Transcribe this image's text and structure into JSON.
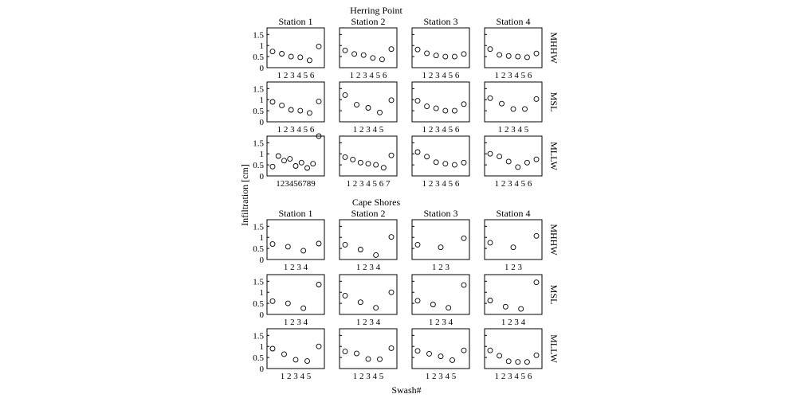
{
  "figure": {
    "ylabel": "Infiltration [cm]",
    "xlabel": "Swash#",
    "y_ticks": [
      "1.5",
      "1",
      "0.5",
      "0"
    ]
  },
  "chart_data": [
    {
      "type": "scatter",
      "title": "Herring Point",
      "columns": [
        "Station 1",
        "Station 2",
        "Station 3",
        "Station 4"
      ],
      "rows": [
        "MHHW",
        "MSL",
        "MLLW"
      ],
      "ylim": [
        0,
        1.8
      ],
      "grid": false,
      "panels": [
        [
          {
            "x": [
              1,
              2,
              3,
              4,
              5,
              6
            ],
            "y": [
              0.73,
              0.63,
              0.5,
              0.47,
              0.33,
              0.96
            ]
          },
          {
            "x": [
              1,
              2,
              3,
              4,
              5,
              6
            ],
            "y": [
              0.78,
              0.62,
              0.57,
              0.44,
              0.37,
              0.84
            ]
          },
          {
            "x": [
              1,
              2,
              3,
              4,
              5,
              6
            ],
            "y": [
              0.82,
              0.65,
              0.55,
              0.5,
              0.5,
              0.62
            ]
          },
          {
            "x": [
              1,
              2,
              3,
              4,
              5,
              6
            ],
            "y": [
              0.84,
              0.58,
              0.53,
              0.5,
              0.47,
              0.64
            ]
          }
        ],
        [
          {
            "x": [
              1,
              2,
              3,
              4,
              5,
              6
            ],
            "y": [
              0.9,
              0.74,
              0.54,
              0.5,
              0.4,
              0.92
            ]
          },
          {
            "x": [
              1,
              2,
              3,
              4,
              5
            ],
            "y": [
              1.21,
              0.77,
              0.63,
              0.42,
              0.98
            ]
          },
          {
            "x": [
              1,
              2,
              3,
              4,
              5,
              6
            ],
            "y": [
              0.95,
              0.7,
              0.61,
              0.5,
              0.5,
              0.8
            ]
          },
          {
            "x": [
              1,
              2,
              3,
              4,
              5
            ],
            "y": [
              1.07,
              0.82,
              0.58,
              0.58,
              1.03
            ]
          }
        ],
        [
          {
            "x": [
              1,
              2,
              3,
              4,
              5,
              6,
              7,
              8,
              9
            ],
            "y": [
              0.42,
              0.9,
              0.69,
              0.77,
              0.45,
              0.6,
              0.36,
              0.55,
              1.8
            ]
          },
          {
            "x": [
              1,
              2,
              3,
              4,
              5,
              6,
              7
            ],
            "y": [
              0.85,
              0.74,
              0.6,
              0.55,
              0.5,
              0.37,
              0.93
            ]
          },
          {
            "x": [
              1,
              2,
              3,
              4,
              5,
              6
            ],
            "y": [
              1.08,
              0.87,
              0.62,
              0.55,
              0.5,
              0.6
            ]
          },
          {
            "x": [
              1,
              2,
              3,
              4,
              5,
              6
            ],
            "y": [
              1.0,
              0.88,
              0.65,
              0.4,
              0.6,
              0.75
            ]
          }
        ]
      ],
      "xtick_labels": [
        [
          "1 2 3 4 5 6",
          "1 2 3 4 5 6",
          "1 2 3 4 5 6",
          "1 2 3 4 5 6"
        ],
        [
          "1 2 3 4 5 6",
          "1 2 3 4 5",
          "1 2 3 4 5 6",
          "1 2 3 4 5"
        ],
        [
          "123456789",
          "1 2 3 4 5 6 7",
          "1 2 3 4 5 6",
          "1 2 3 4 5 6"
        ]
      ]
    },
    {
      "type": "scatter",
      "title": "Cape Shores",
      "columns": [
        "Station 1",
        "Station 2",
        "Station 3",
        "Station 4"
      ],
      "rows": [
        "MHHW",
        "MSL",
        "MLLW"
      ],
      "ylim": [
        0,
        1.8
      ],
      "grid": false,
      "panels": [
        [
          {
            "x": [
              1,
              2,
              3,
              4
            ],
            "y": [
              0.7,
              0.58,
              0.4,
              0.72
            ]
          },
          {
            "x": [
              1,
              2,
              3,
              4
            ],
            "y": [
              0.67,
              0.45,
              0.2,
              1.02
            ]
          },
          {
            "x": [
              1,
              2,
              3
            ],
            "y": [
              0.67,
              0.55,
              0.96
            ]
          },
          {
            "x": [
              1,
              2,
              3
            ],
            "y": [
              0.76,
              0.55,
              1.07
            ]
          }
        ],
        [
          {
            "x": [
              1,
              2,
              3,
              4
            ],
            "y": [
              0.6,
              0.5,
              0.28,
              1.35
            ]
          },
          {
            "x": [
              1,
              2,
              3,
              4
            ],
            "y": [
              0.85,
              0.55,
              0.3,
              1.0
            ]
          },
          {
            "x": [
              1,
              2,
              3,
              4
            ],
            "y": [
              0.62,
              0.45,
              0.3,
              1.33
            ]
          },
          {
            "x": [
              1,
              2,
              3,
              4
            ],
            "y": [
              0.63,
              0.35,
              0.25,
              1.45
            ]
          }
        ],
        [
          {
            "x": [
              1,
              2,
              3,
              4,
              5
            ],
            "y": [
              0.9,
              0.65,
              0.4,
              0.34,
              1.0
            ]
          },
          {
            "x": [
              1,
              2,
              3,
              4,
              5
            ],
            "y": [
              0.77,
              0.68,
              0.43,
              0.42,
              0.92
            ]
          },
          {
            "x": [
              1,
              2,
              3,
              4,
              5
            ],
            "y": [
              0.8,
              0.67,
              0.55,
              0.38,
              0.82
            ]
          },
          {
            "x": [
              1,
              2,
              3,
              4,
              5,
              6
            ],
            "y": [
              0.82,
              0.58,
              0.33,
              0.3,
              0.3,
              0.6
            ]
          }
        ]
      ],
      "xtick_labels": [
        [
          "1 2 3 4",
          "1 2 3 4",
          "1 2 3",
          "1 2 3"
        ],
        [
          "1 2 3 4",
          "1 2 3 4",
          "1 2 3 4",
          "1 2 3 4"
        ],
        [
          "1 2 3 4 5",
          "1 2 3 4 5",
          "1 2 3 4 5",
          "1 2 3 4 5 6"
        ]
      ]
    }
  ]
}
